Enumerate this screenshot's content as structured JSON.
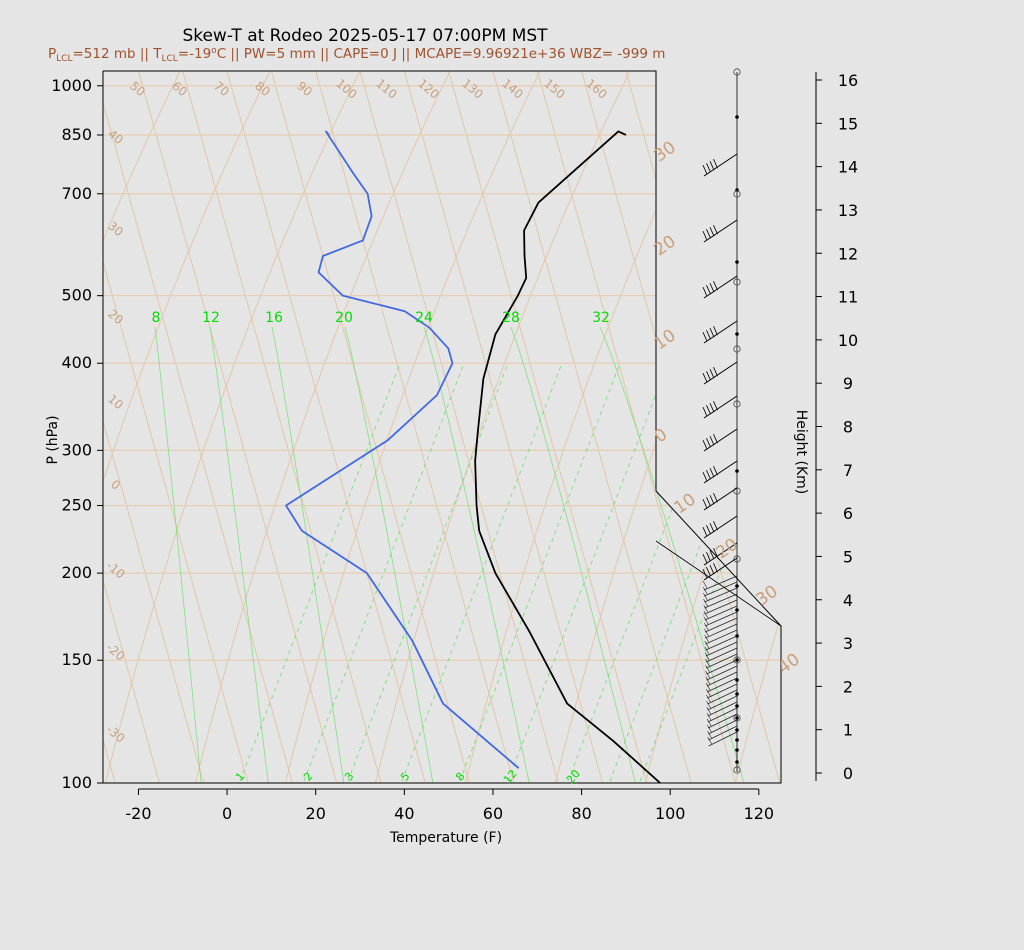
{
  "chart_data": {
    "type": "line",
    "title": "Skew-T at Rodeo 2025-05-17 07:00PM MST",
    "subtitle": {
      "p_lcl": "=512 mb || T",
      "t_lcl": "=-19",
      "deg": "o",
      "rest": "C || PW=5 mm || CAPE=0 J || MCAPE=9.96921e+36 WBZ= -999 m",
      "lcl_sub": "LCL"
    },
    "xlabel": "Temperature (F)",
    "ylabel": "P (hPa)",
    "y2label": "Height (Km)",
    "xlim": [
      -28,
      125
    ],
    "ylim": [
      1050,
      100
    ],
    "x_ticks": [
      "-20",
      "0",
      "20",
      "40",
      "60",
      "80",
      "100",
      "120"
    ],
    "x_tick_values": [
      -20,
      0,
      20,
      40,
      60,
      80,
      100,
      120
    ],
    "p_ticks": [
      "100",
      "150",
      "200",
      "250",
      "300",
      "400",
      "500",
      "700",
      "850",
      "1000"
    ],
    "p_tick_values": [
      100,
      150,
      200,
      250,
      300,
      400,
      500,
      700,
      850,
      1000
    ],
    "height_ticks": [
      "0",
      "1",
      "2",
      "3",
      "4",
      "5",
      "6",
      "7",
      "8",
      "9",
      "10",
      "11",
      "12",
      "13",
      "14",
      "15",
      "16"
    ],
    "isotherm_labels": [
      "50",
      "60",
      "70",
      "80",
      "90",
      "100",
      "110",
      "120",
      "130",
      "140",
      "150",
      "160"
    ],
    "isotherm_left_labels": [
      "40",
      "30",
      "20",
      "10",
      "0",
      "-10",
      "-20",
      "-30"
    ],
    "isotherm_right_labels": [
      "30",
      "20",
      "10",
      "0",
      "10",
      "20",
      "30",
      "40"
    ],
    "theta_labels": [
      "8",
      "12",
      "16",
      "20",
      "24",
      "28",
      "32"
    ],
    "mixing_labels": [
      "1",
      "2",
      "3",
      "5",
      "8",
      "12",
      "20"
    ],
    "series": [
      {
        "name": "temperature",
        "color": "#000000",
        "x": [
          86,
          84.5,
          62,
          57,
          55.5,
          54.5,
          51.5,
          44,
          38.5,
          34,
          31.5,
          29,
          28,
          29,
          33,
          37,
          45,
          53
        ],
        "p": [
          850,
          860,
          680,
          620,
          570,
          530,
          500,
          440,
          380,
          320,
          290,
          250,
          230,
          200,
          165,
          130,
          115,
          100
        ]
      },
      {
        "name": "dewpoint",
        "color": "#4169e1",
        "x": [
          19,
          18.5,
          22,
          24,
          23.5,
          20,
          10,
          8,
          12,
          25,
          29.5,
          32.5,
          32.5,
          27,
          13,
          -14,
          -12,
          0,
          6,
          9,
          22
        ],
        "p": [
          850,
          860,
          750,
          700,
          650,
          600,
          570,
          540,
          500,
          475,
          450,
          420,
          400,
          360,
          310,
          250,
          230,
          200,
          160,
          130,
          105
        ]
      }
    ]
  }
}
